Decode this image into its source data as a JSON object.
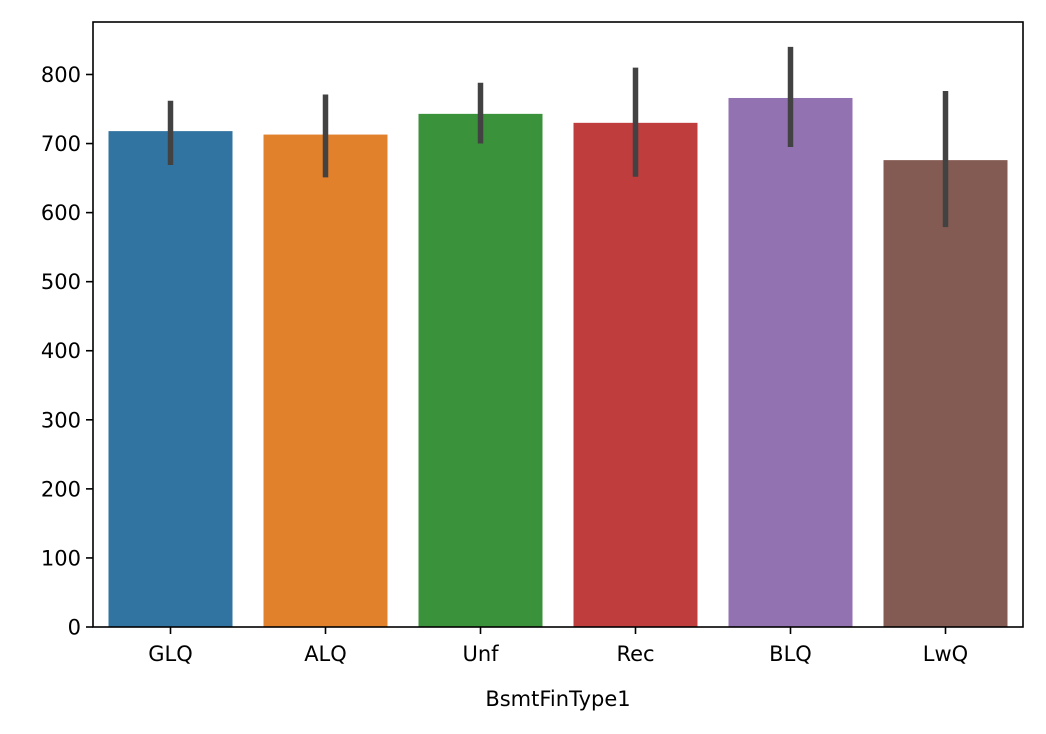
{
  "chart_data": {
    "type": "bar",
    "title": "",
    "xlabel": "BsmtFinType1",
    "ylabel": "",
    "categories": [
      "GLQ",
      "ALQ",
      "Unf",
      "Rec",
      "BLQ",
      "LwQ"
    ],
    "values": [
      718,
      713,
      743,
      730,
      766,
      676
    ],
    "ci_low": [
      669,
      651,
      700,
      652,
      695,
      579
    ],
    "ci_high": [
      762,
      771,
      788,
      810,
      840,
      776
    ],
    "colors": [
      "#3274a1",
      "#e1812c",
      "#3a923a",
      "#c03d3e",
      "#9372b2",
      "#845b53"
    ],
    "errorbar_color": "#424242",
    "ylim": [
      0,
      876
    ],
    "yticks": [
      0,
      100,
      200,
      300,
      400,
      500,
      600,
      700,
      800
    ],
    "grid": false,
    "legend": false
  }
}
